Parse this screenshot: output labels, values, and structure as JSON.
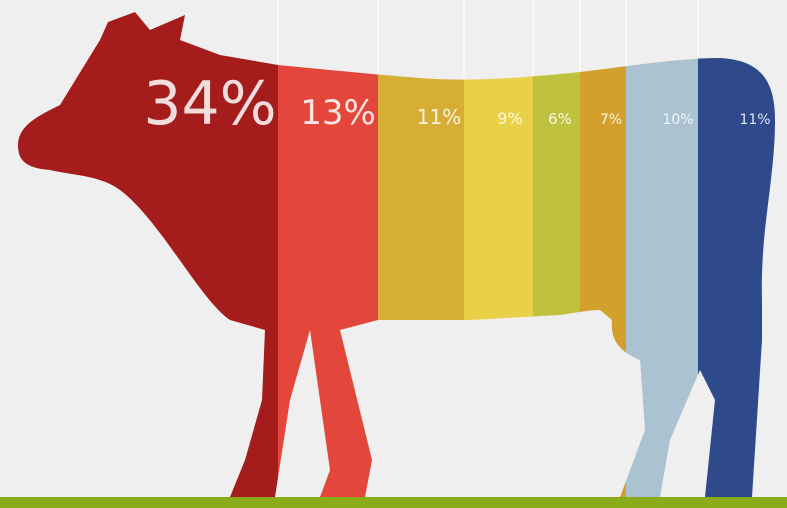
{
  "segments": [
    {
      "label": "34%",
      "color": "#a51c1c"
    },
    {
      "label": "13%",
      "color": "#e3463a"
    },
    {
      "label": "11%",
      "color": "#d6ae35"
    },
    {
      "label": "9%",
      "color": "#e8d146"
    },
    {
      "label": "6%",
      "color": "#c0c23f"
    },
    {
      "label": "7%",
      "color": "#d3a02e"
    },
    {
      "label": "10%",
      "color": "#abc3d1"
    },
    {
      "label": "11%",
      "color": "#2e4a8a"
    }
  ]
}
